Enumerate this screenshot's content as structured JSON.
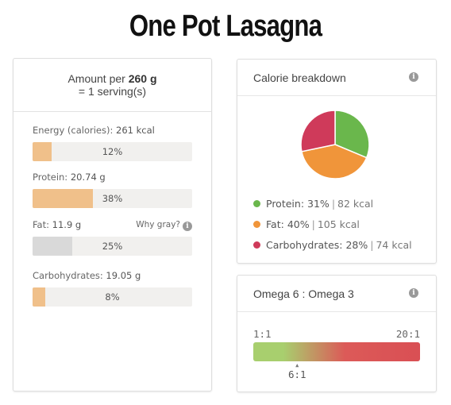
{
  "title": "One Pot Lasagna",
  "serving": {
    "prefix": "Amount per",
    "amount": "260 g",
    "line2": "= 1 serving(s)"
  },
  "nutrients": [
    {
      "label": "Energy (calories):",
      "value": "261 kcal",
      "percent_text": "12%",
      "percent": 12,
      "color": "#f0c08a"
    },
    {
      "label": "Protein:",
      "value": "20.74 g",
      "percent_text": "38%",
      "percent": 38,
      "color": "#f0c08a"
    },
    {
      "label": "Fat:",
      "value": "11.9 g",
      "percent_text": "25%",
      "percent": 25,
      "color": "#d9d9d9",
      "note": "Why gray?"
    },
    {
      "label": "Carbohydrates:",
      "value": "19.05 g",
      "percent_text": "8%",
      "percent": 8,
      "color": "#f0c08a"
    }
  ],
  "calorie_breakdown": {
    "title": "Calorie breakdown",
    "info_icon": "info-icon",
    "items": [
      {
        "name": "Protein:",
        "percent_text": "31%",
        "kcal": "82 kcal",
        "percent": 31,
        "color": "#6ab74c"
      },
      {
        "name": "Fat:",
        "percent_text": "40%",
        "kcal": "105 kcal",
        "percent": 40,
        "color": "#f0953a"
      },
      {
        "name": "Carbohydrates:",
        "percent_text": "28%",
        "kcal": "74 kcal",
        "percent": 28,
        "color": "#cf3a5a"
      }
    ]
  },
  "omega": {
    "title": "Omega 6 : Omega 3",
    "info_icon": "info-icon",
    "min_label": "1:1",
    "max_label": "20:1",
    "value_label": "6:1",
    "value": 6,
    "min": 1,
    "max": 20
  }
}
